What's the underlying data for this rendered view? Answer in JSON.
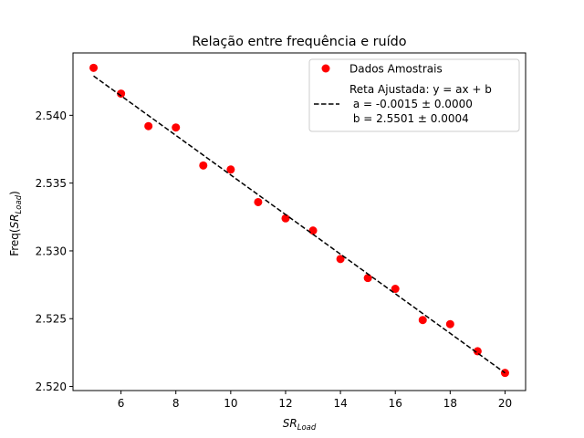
{
  "chart_data": {
    "type": "scatter",
    "title": "Relação entre frequência e ruído",
    "xlabel": {
      "base": "SR",
      "sub": "Load"
    },
    "ylabel": {
      "prefix": "Freq(",
      "base": "SR",
      "sub": "Load",
      "suffix": ")"
    },
    "xlim": [
      4.25,
      20.75
    ],
    "ylim": [
      2.5197,
      2.5446
    ],
    "x_ticks": [
      6,
      8,
      10,
      12,
      14,
      16,
      18,
      20
    ],
    "x_tick_labels": [
      "6",
      "8",
      "10",
      "12",
      "14",
      "16",
      "18",
      "20"
    ],
    "y_ticks": [
      2.52,
      2.525,
      2.53,
      2.535,
      2.54
    ],
    "y_tick_labels": [
      "2.520",
      "2.525",
      "2.530",
      "2.535",
      "2.540"
    ],
    "grid": false,
    "legend_position": "top-right",
    "series": [
      {
        "name": "Dados Amostrais",
        "kind": "scatter",
        "color": "#ff0000",
        "x": [
          5,
          6,
          7,
          8,
          9,
          10,
          11,
          12,
          13,
          14,
          15,
          16,
          17,
          18,
          19,
          20
        ],
        "y": [
          2.5435,
          2.5416,
          2.5392,
          2.5391,
          2.5363,
          2.536,
          2.5336,
          2.5324,
          2.5315,
          2.5294,
          2.528,
          2.5272,
          2.5249,
          2.5246,
          2.5226,
          2.521
        ]
      },
      {
        "name": "Reta Ajustada: y = ax + b",
        "kind": "line",
        "style": "dashed",
        "color": "#000000",
        "x": [
          5,
          20
        ],
        "y": [
          2.5429,
          2.521
        ]
      }
    ],
    "legend": {
      "scatter_label": "Dados Amostrais",
      "line_label_lines": [
        "Reta Ajustada: y = ax + b",
        " a = -0.0015 ± 0.0000",
        " b = 2.5501 ± 0.0004"
      ]
    }
  }
}
